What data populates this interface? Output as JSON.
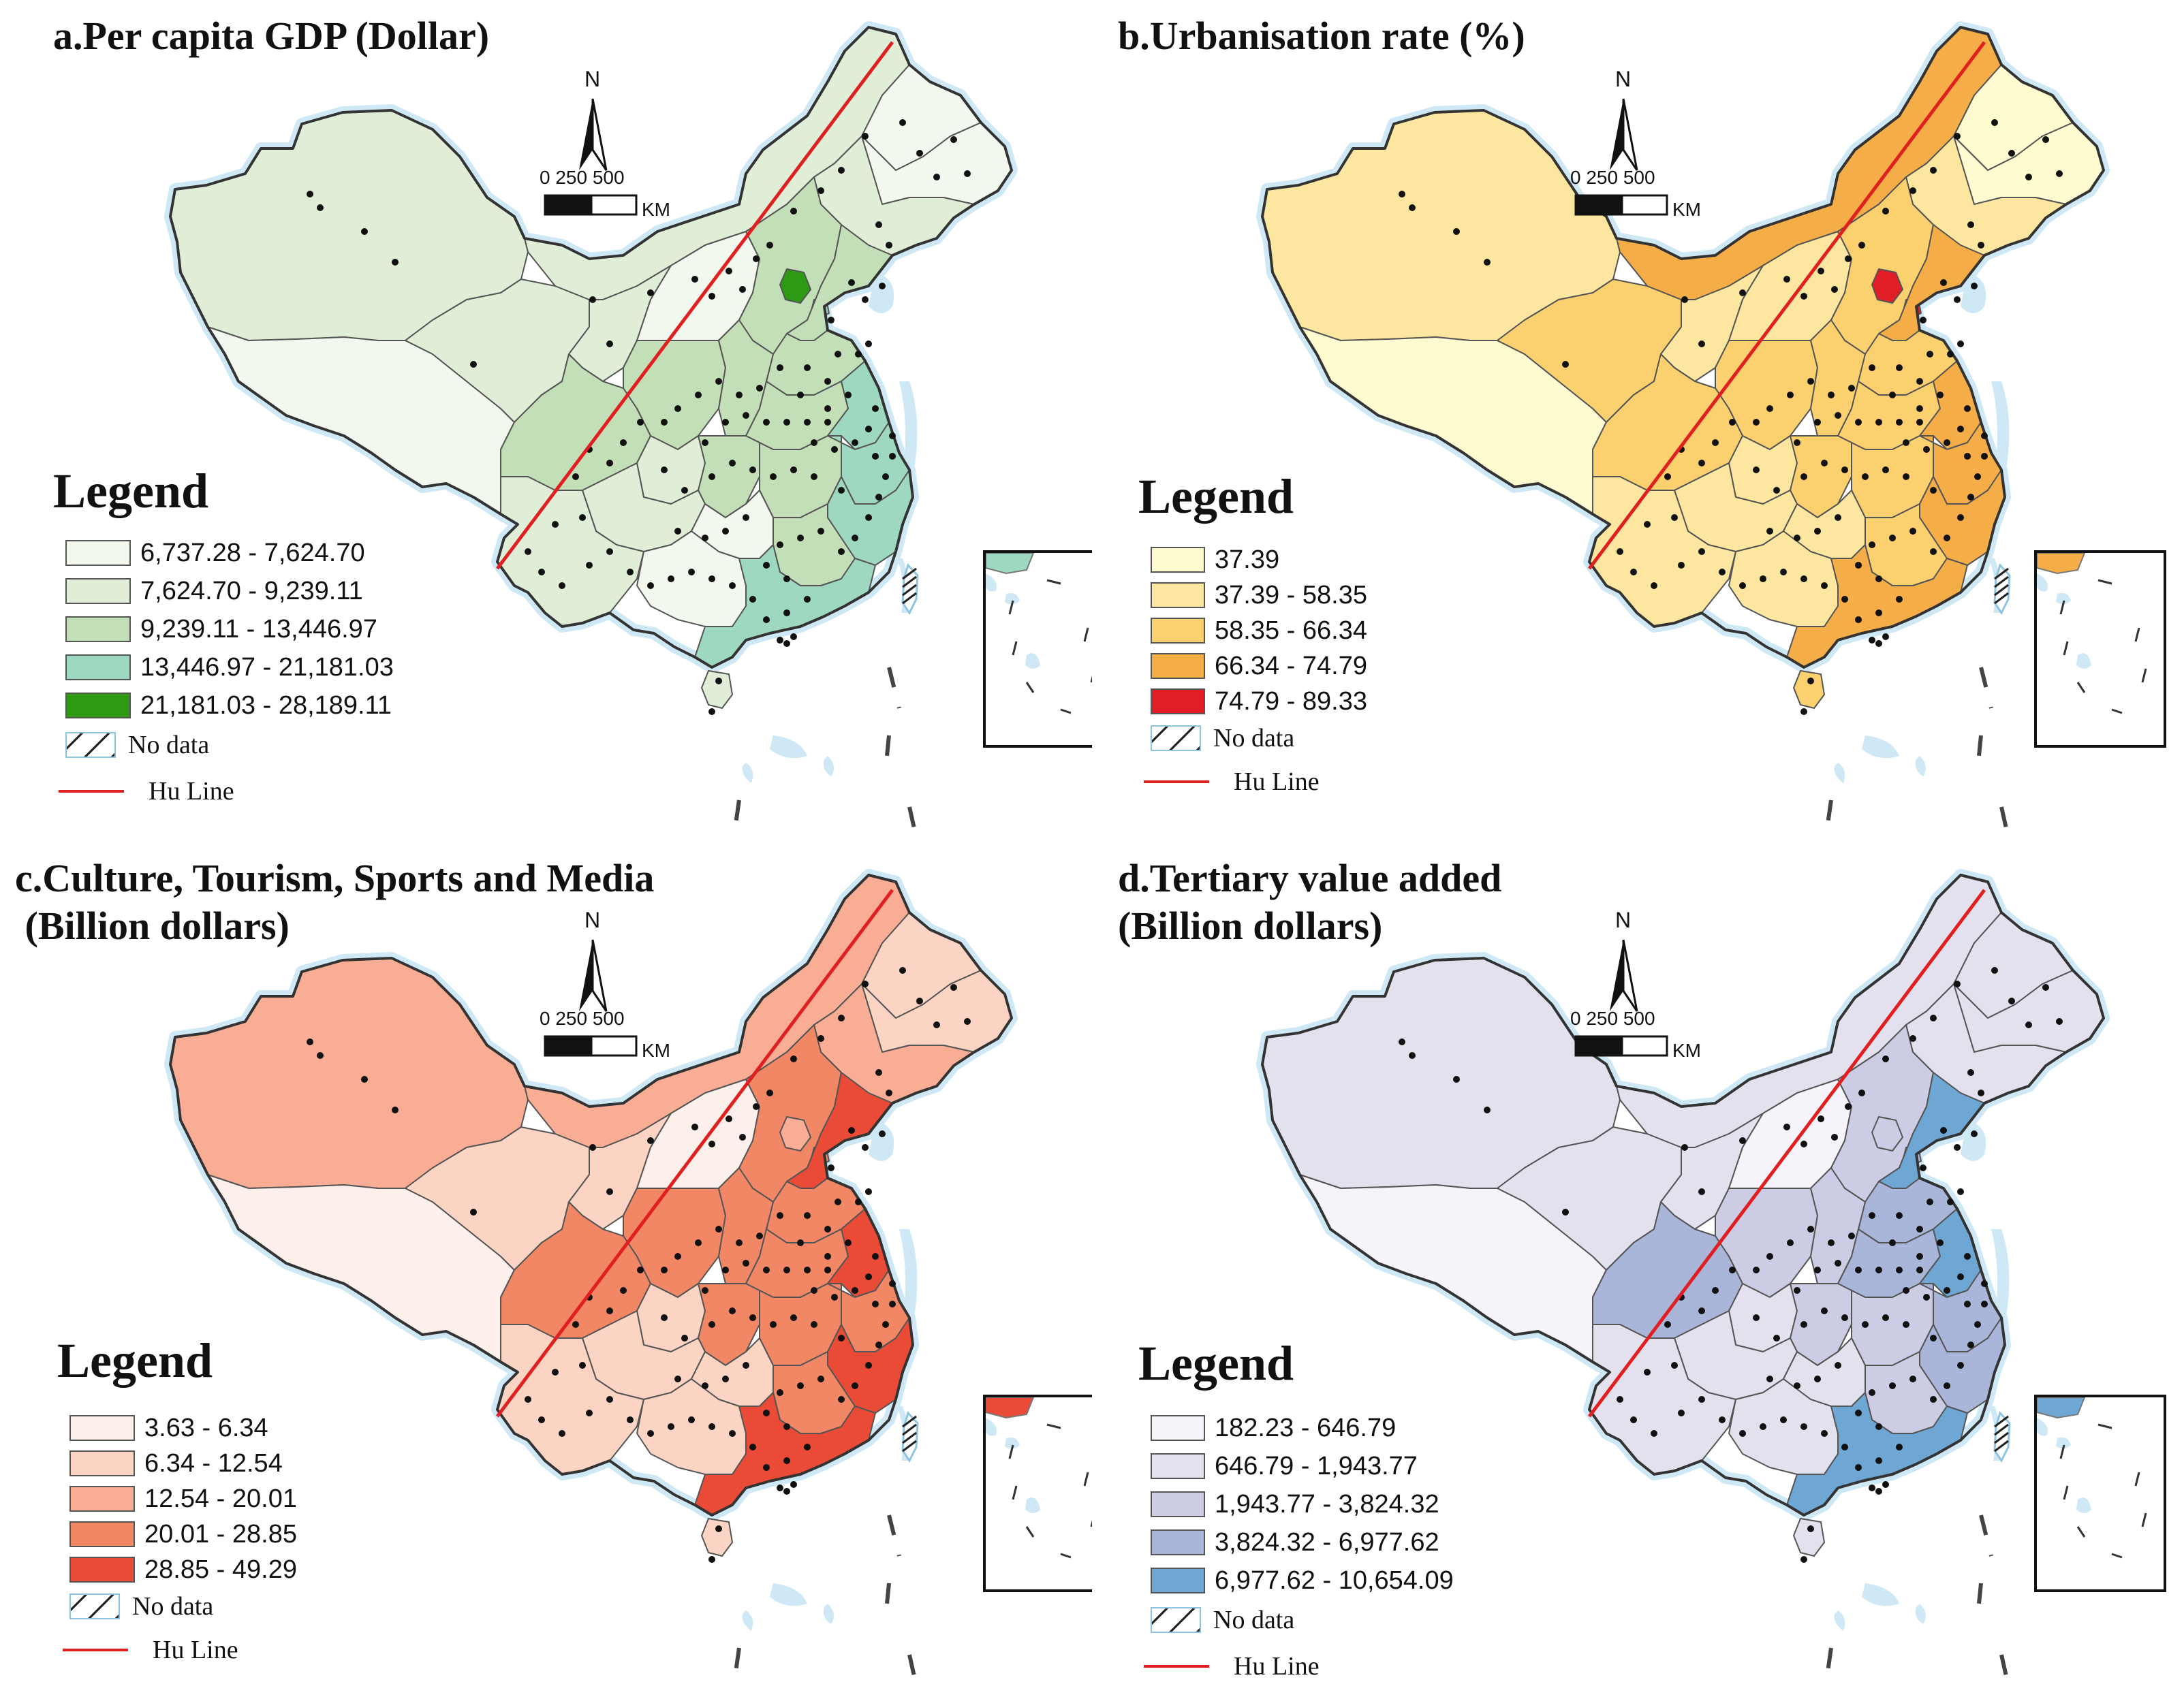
{
  "colors": {
    "boundary": "#555555",
    "hu_line": "#e02020",
    "sea": "#cfe8f5",
    "dot": "#111111"
  },
  "common": {
    "legend_title": "Legend",
    "no_data": "No data",
    "hu_line": "Hu Line",
    "north": "N",
    "scale_ticks": "0   250 500",
    "scale_unit": "KM"
  },
  "panels": [
    {
      "title": "a.Per capita GDP (Dollar)",
      "legend": [
        {
          "label": "6,737.28 - 7,624.70",
          "color": "#f3f8ee"
        },
        {
          "label": "7,624.70 - 9,239.11",
          "color": "#e0eed8"
        },
        {
          "label": "9,239.11 - 13,446.97",
          "color": "#c3dfb8"
        },
        {
          "label": "13,446.97 - 21,181.03",
          "color": "#9ed8c0"
        },
        {
          "label": "21,181.03 - 28,189.11",
          "color": "#2e9a14"
        }
      ]
    },
    {
      "title": "b.Urbanisation rate (%)",
      "legend": [
        {
          "label": "37.39",
          "color": "#fefbd0"
        },
        {
          "label": "37.39 - 58.35",
          "color": "#fde7a0"
        },
        {
          "label": "58.35 - 66.34",
          "color": "#fbd170"
        },
        {
          "label": "66.34 - 74.79",
          "color": "#f5ad48"
        },
        {
          "label": "74.79 - 89.33",
          "color": "#e11d25"
        }
      ]
    },
    {
      "title": "c.Culture, Tourism, Sports and Media\n (Billion dollars)",
      "legend": [
        {
          "label": "3.63 - 6.34",
          "color": "#fdf0ea"
        },
        {
          "label": "6.34 - 12.54",
          "color": "#fbd4c4"
        },
        {
          "label": "12.54 - 20.01",
          "color": "#f8ad94"
        },
        {
          "label": "20.01 - 28.85",
          "color": "#f28766"
        },
        {
          "label": "28.85 - 49.29",
          "color": "#ea4b36"
        }
      ]
    },
    {
      "title": "d.Tertiary value added\n(Billion dollars)",
      "legend": [
        {
          "label": "182.23 - 646.79",
          "color": "#f7f3fa"
        },
        {
          "label": "646.79 - 1,943.77",
          "color": "#e4e1ee"
        },
        {
          "label": "1,943.77 - 3,824.32",
          "color": "#ccccE4"
        },
        {
          "label": "3,824.32 - 6,977.62",
          "color": "#a9b6da"
        },
        {
          "label": "6,977.62 - 10,654.09",
          "color": "#6fa7d4"
        }
      ]
    }
  ]
}
